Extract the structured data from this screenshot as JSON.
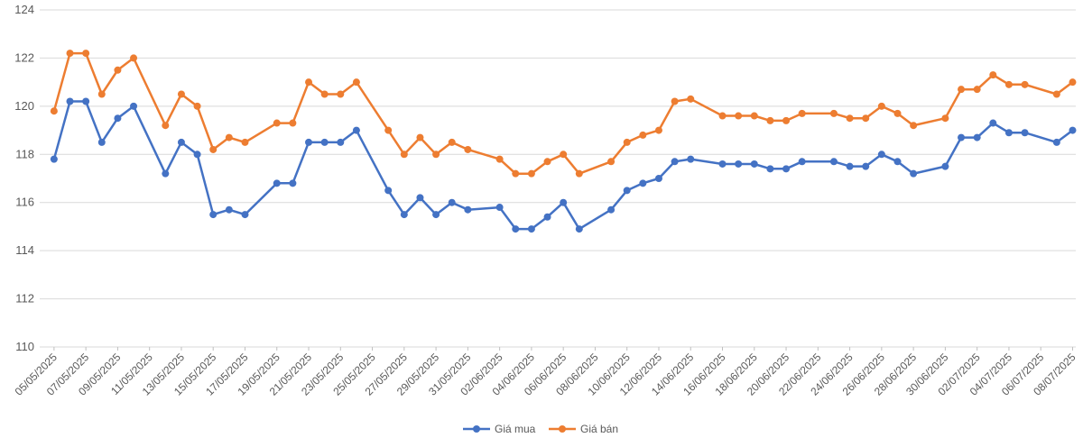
{
  "chart_data": {
    "type": "line",
    "title": "",
    "xlabel": "",
    "ylabel": "",
    "ylim": [
      110,
      124
    ],
    "yticks": [
      110,
      112,
      114,
      116,
      118,
      120,
      122,
      124
    ],
    "grid": "horizontal",
    "legend_position": "bottom",
    "x": [
      "05/05/2025",
      "06/05/2025",
      "07/05/2025",
      "08/05/2025",
      "09/05/2025",
      "10/05/2025",
      "12/05/2025",
      "13/05/2025",
      "14/05/2025",
      "15/05/2025",
      "16/05/2025",
      "17/05/2025",
      "19/05/2025",
      "20/05/2025",
      "21/05/2025",
      "22/05/2025",
      "23/05/2025",
      "24/05/2025",
      "26/05/2025",
      "27/05/2025",
      "28/05/2025",
      "29/05/2025",
      "30/05/2025",
      "31/05/2025",
      "02/06/2025",
      "03/06/2025",
      "04/06/2025",
      "05/06/2025",
      "06/06/2025",
      "07/06/2025",
      "09/06/2025",
      "10/06/2025",
      "11/06/2025",
      "12/06/2025",
      "13/06/2025",
      "14/06/2025",
      "16/06/2025",
      "17/06/2025",
      "18/06/2025",
      "19/06/2025",
      "20/06/2025",
      "21/06/2025",
      "23/06/2025",
      "24/06/2025",
      "25/06/2025",
      "26/06/2025",
      "27/06/2025",
      "28/06/2025",
      "30/06/2025",
      "01/07/2025",
      "02/07/2025",
      "03/07/2025",
      "04/07/2025",
      "05/07/2025",
      "07/07/2025",
      "08/07/2025"
    ],
    "xtick_labels": [
      "05/05/2025",
      "07/05/2025",
      "09/05/2025",
      "11/05/2025",
      "13/05/2025",
      "15/05/2025",
      "17/05/2025",
      "19/05/2025",
      "21/05/2025",
      "23/05/2025",
      "25/05/2025",
      "27/05/2025",
      "29/05/2025",
      "31/05/2025",
      "02/06/2025",
      "04/06/2025",
      "06/06/2025",
      "08/06/2025",
      "10/06/2025",
      "12/06/2025",
      "14/06/2025",
      "16/06/2025",
      "18/06/2025",
      "20/06/2025",
      "22/06/2025",
      "24/06/2025",
      "26/06/2025",
      "28/06/2025",
      "30/06/2025",
      "02/07/2025",
      "04/07/2025",
      "06/07/2025",
      "08/07/2025"
    ],
    "series": [
      {
        "name": "Giá mua",
        "color": "#4472C4",
        "values": [
          117.8,
          120.2,
          120.2,
          118.5,
          119.5,
          120.0,
          117.2,
          118.5,
          118.0,
          115.5,
          115.7,
          115.5,
          116.8,
          116.8,
          118.5,
          118.5,
          118.5,
          119.0,
          116.5,
          115.5,
          116.2,
          115.5,
          116.0,
          115.7,
          115.8,
          114.9,
          114.9,
          115.4,
          116.0,
          114.9,
          115.7,
          116.5,
          116.8,
          117.0,
          117.7,
          117.8,
          117.6,
          117.6,
          117.6,
          117.4,
          117.4,
          117.7,
          117.7,
          117.5,
          117.5,
          118.0,
          117.7,
          117.2,
          117.5,
          118.7,
          118.7,
          119.3,
          118.9,
          118.9,
          118.5,
          119.0
        ]
      },
      {
        "name": "Giá bán",
        "color": "#ED7D31",
        "values": [
          119.8,
          122.2,
          122.2,
          120.5,
          121.5,
          122.0,
          119.2,
          120.5,
          120.0,
          118.2,
          118.7,
          118.5,
          119.3,
          119.3,
          121.0,
          120.5,
          120.5,
          121.0,
          119.0,
          118.0,
          118.7,
          118.0,
          118.5,
          118.2,
          117.8,
          117.2,
          117.2,
          117.7,
          118.0,
          117.2,
          117.7,
          118.5,
          118.8,
          119.0,
          120.2,
          120.3,
          119.6,
          119.6,
          119.6,
          119.4,
          119.4,
          119.7,
          119.7,
          119.5,
          119.5,
          120.0,
          119.7,
          119.2,
          119.5,
          120.7,
          120.7,
          121.3,
          120.9,
          120.9,
          120.5,
          121.0
        ]
      }
    ]
  }
}
